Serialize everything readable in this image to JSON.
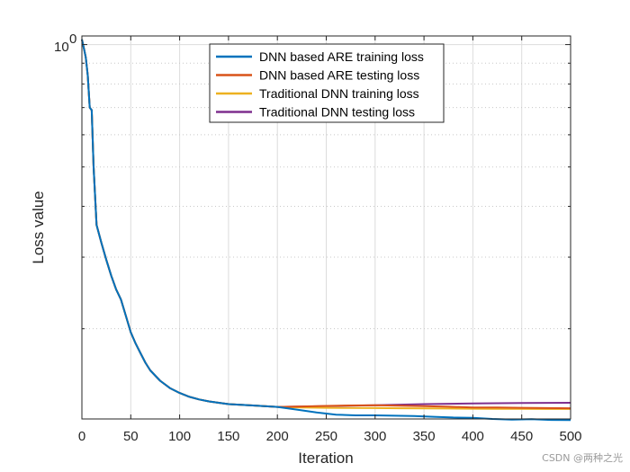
{
  "chart_data": {
    "type": "line",
    "title": "",
    "xlabel": "Iteration",
    "ylabel": "Loss value",
    "xlim": [
      0,
      500
    ],
    "ylim": [
      0.12,
      1.05
    ],
    "yscale": "log",
    "grid": true,
    "xticks": [
      0,
      50,
      100,
      150,
      200,
      250,
      300,
      350,
      400,
      450,
      500
    ],
    "xtick_labels": [
      "0",
      "50",
      "100",
      "150",
      "200",
      "250",
      "300",
      "350",
      "400",
      "450",
      "500"
    ],
    "yticks": [
      1.0
    ],
    "ytick_label_base": "10",
    "ytick_label_exp": "0",
    "legend_position": "top-center",
    "shared_x": [
      0,
      2,
      4,
      6,
      8,
      10,
      12,
      15,
      20,
      25,
      30,
      35,
      40,
      45,
      50,
      55,
      60,
      65,
      70,
      80,
      90,
      100,
      110,
      120,
      130,
      140,
      150,
      175,
      200
    ],
    "shared_y": [
      1.03,
      0.98,
      0.93,
      0.84,
      0.7,
      0.69,
      0.5,
      0.36,
      0.325,
      0.295,
      0.27,
      0.25,
      0.236,
      0.215,
      0.196,
      0.184,
      0.174,
      0.165,
      0.158,
      0.149,
      0.143,
      0.139,
      0.136,
      0.134,
      0.1325,
      0.1315,
      0.1305,
      0.1295,
      0.1285
    ],
    "series": [
      {
        "name": "DNN based ARE training loss",
        "color": "#0072BD",
        "x": [
          200,
          220,
          240,
          260,
          280,
          300,
          320,
          340,
          360,
          380,
          400,
          420,
          440,
          460,
          480,
          500
        ],
        "y": [
          0.1285,
          0.1265,
          0.1245,
          0.123,
          0.1225,
          0.1225,
          0.1222,
          0.122,
          0.1215,
          0.121,
          0.1208,
          0.12,
          0.1195,
          0.1198,
          0.1193,
          0.1192
        ]
      },
      {
        "name": "DNN based ARE testing loss",
        "color": "#D95319",
        "x": [
          200,
          225,
          250,
          275,
          300,
          325,
          350,
          375,
          400,
          425,
          450,
          475,
          500
        ],
        "y": [
          0.1285,
          0.1288,
          0.1292,
          0.1295,
          0.1297,
          0.1294,
          0.129,
          0.1286,
          0.1281,
          0.1281,
          0.1278,
          0.1276,
          0.1275
        ]
      },
      {
        "name": "Traditional DNN training loss",
        "color": "#EDB120",
        "x": [
          200,
          225,
          250,
          275,
          300,
          325,
          350,
          375,
          400,
          425,
          450,
          475,
          500
        ],
        "y": [
          0.1285,
          0.128,
          0.1278,
          0.1277,
          0.1276,
          0.1275,
          0.1274,
          0.1273,
          0.1272,
          0.1271,
          0.1271,
          0.127,
          0.127
        ]
      },
      {
        "name": "Traditional DNN testing loss",
        "color": "#7E2F8E",
        "x": [
          200,
          250,
          300,
          350,
          400,
          450,
          500
        ],
        "y": [
          0.1285,
          0.129,
          0.1297,
          0.1305,
          0.131,
          0.1313,
          0.1315
        ]
      }
    ]
  },
  "watermark": "CSDN @两种之光"
}
